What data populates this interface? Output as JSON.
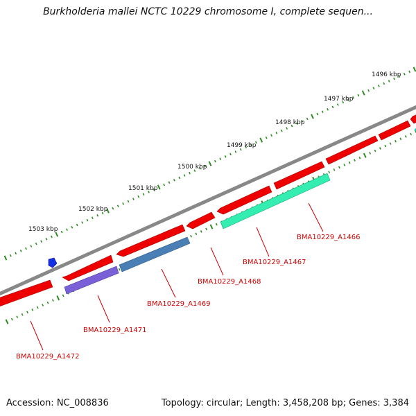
{
  "title": "Burkholderia mallei NCTC 10229 chromosome I, complete sequen...",
  "footer": {
    "accession": "Accession: NC_008836",
    "summary": "Topology: circular; Length: 3,458,208 bp; Genes: 3,384"
  },
  "scale": {
    "ticks": [
      "1496 kbp",
      "1497 kbp",
      "1498 kbp",
      "1499 kbp",
      "1500 kbp",
      "1501 kbp",
      "1502 kbp",
      "1503 kbp"
    ]
  },
  "genes": {
    "labels": [
      "BMA10229_A1466",
      "BMA10229_A1467",
      "BMA10229_A1468",
      "BMA10229_A1469",
      "BMA10229_A1471",
      "BMA10229_A1472"
    ]
  },
  "colors": {
    "cds": "#ee0000",
    "backbone": "#888888",
    "scale_ticks": "#2e8b22",
    "label_text": "#cc0000",
    "gene_a1466": "#33eeb0",
    "gene_a1469": "#4a7fb5",
    "gene_a1471": "#7a60d6",
    "small_feature": "#1530e0"
  }
}
